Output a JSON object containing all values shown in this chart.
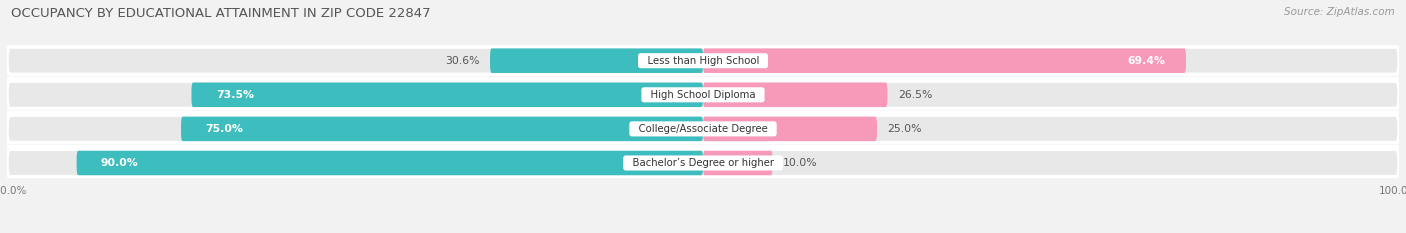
{
  "title": "OCCUPANCY BY EDUCATIONAL ATTAINMENT IN ZIP CODE 22847",
  "source": "Source: ZipAtlas.com",
  "categories": [
    "Less than High School",
    "High School Diploma",
    "College/Associate Degree",
    "Bachelor’s Degree or higher"
  ],
  "owner_pct": [
    30.6,
    73.5,
    75.0,
    90.0
  ],
  "renter_pct": [
    69.4,
    26.5,
    25.0,
    10.0
  ],
  "owner_color": "#3dbdbd",
  "renter_color": "#f799b8",
  "bg_color": "#f2f2f2",
  "row_bg_color": "#e8e8e8",
  "row_sep_color": "#ffffff",
  "title_fontsize": 9.5,
  "label_fontsize": 7.8,
  "source_fontsize": 7.5,
  "tick_fontsize": 7.5,
  "legend_fontsize": 8.0,
  "bar_height": 0.72,
  "note_owner_30pct_outside": true
}
